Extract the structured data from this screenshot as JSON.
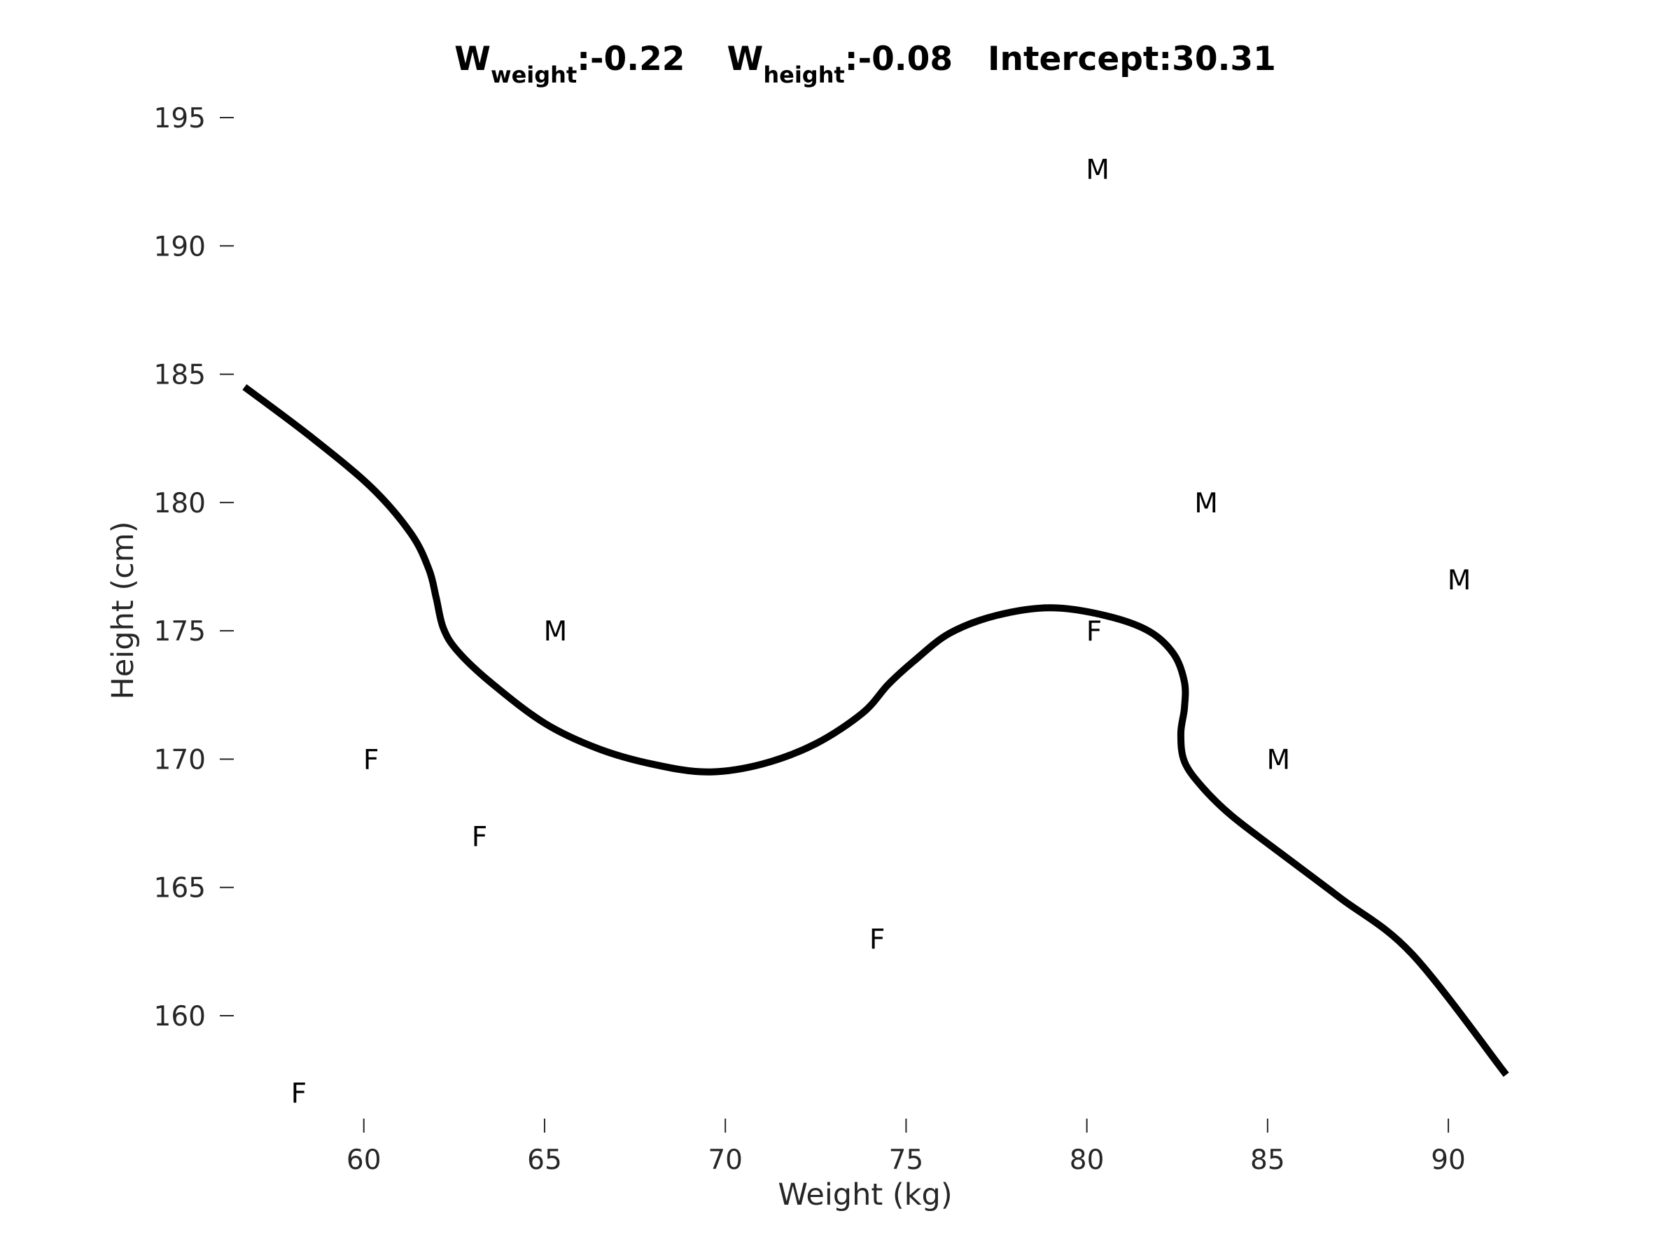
{
  "chart_data": {
    "type": "scatter",
    "title": {
      "w_weight_main": "W",
      "w_weight_sub": "weight",
      "w_weight_value": ":-0.22",
      "w_height_main": "W",
      "w_height_sub": "height",
      "w_height_value": ":-0.08",
      "intercept": "Intercept:30.31"
    },
    "xlabel": "Weight (kg)",
    "ylabel": "Height (cm)",
    "xlim": [
      55.9,
      93
    ],
    "ylim": [
      155.8,
      196.5
    ],
    "xticks": [
      60,
      65,
      70,
      75,
      80,
      85,
      90
    ],
    "yticks": [
      160,
      165,
      170,
      175,
      180,
      185,
      190,
      195
    ],
    "grid": false,
    "points": [
      {
        "x": 58.2,
        "y": 157,
        "label": "F"
      },
      {
        "x": 60.2,
        "y": 170,
        "label": "F"
      },
      {
        "x": 63.2,
        "y": 167,
        "label": "F"
      },
      {
        "x": 65.3,
        "y": 175,
        "label": "M"
      },
      {
        "x": 74.2,
        "y": 163,
        "label": "F"
      },
      {
        "x": 80.2,
        "y": 175,
        "label": "F"
      },
      {
        "x": 80.3,
        "y": 193,
        "label": "M"
      },
      {
        "x": 83.3,
        "y": 180,
        "label": "M"
      },
      {
        "x": 85.3,
        "y": 170,
        "label": "M"
      },
      {
        "x": 90.3,
        "y": 177,
        "label": "M"
      }
    ],
    "decision_boundary": [
      [
        56.7,
        184.5
      ],
      [
        58.5,
        182.6
      ],
      [
        60.2,
        180.6
      ],
      [
        61.3,
        178.8
      ],
      [
        61.8,
        177.4
      ],
      [
        62.0,
        176.3
      ],
      [
        62.2,
        175.1
      ],
      [
        62.6,
        174.2
      ],
      [
        63.5,
        173.0
      ],
      [
        65.0,
        171.4
      ],
      [
        66.5,
        170.4
      ],
      [
        68.0,
        169.8
      ],
      [
        69.5,
        169.5
      ],
      [
        71.0,
        169.8
      ],
      [
        72.5,
        170.6
      ],
      [
        73.8,
        171.8
      ],
      [
        74.5,
        172.9
      ],
      [
        75.2,
        173.8
      ],
      [
        76.2,
        174.9
      ],
      [
        77.5,
        175.6
      ],
      [
        79.0,
        175.9
      ],
      [
        80.5,
        175.6
      ],
      [
        81.7,
        175.0
      ],
      [
        82.4,
        174.1
      ],
      [
        82.7,
        173.0
      ],
      [
        82.7,
        172.0
      ],
      [
        82.6,
        171.0
      ],
      [
        82.7,
        169.9
      ],
      [
        83.2,
        168.9
      ],
      [
        84.0,
        167.8
      ],
      [
        85.3,
        166.4
      ],
      [
        87.0,
        164.6
      ],
      [
        89.0,
        162.4
      ],
      [
        91.6,
        157.7
      ]
    ],
    "colors": {
      "boundary": "#000000",
      "text": "#000000",
      "axis": "#262626"
    }
  }
}
